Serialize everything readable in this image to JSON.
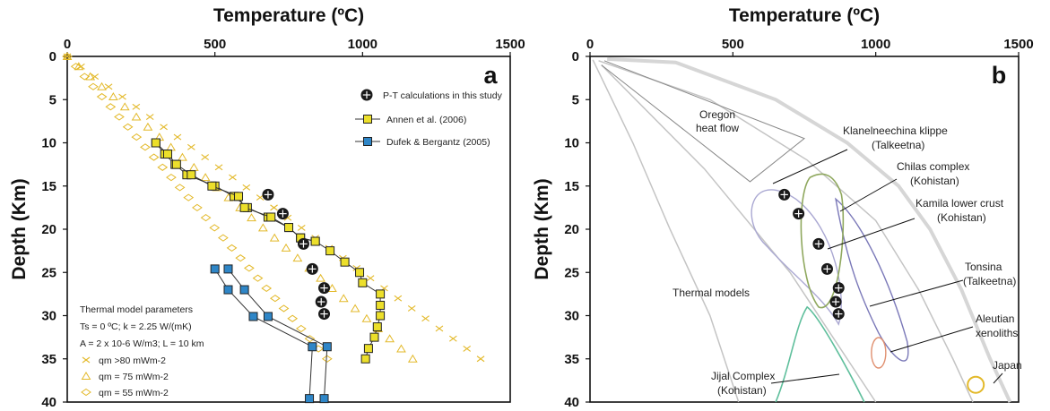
{
  "colors": {
    "gold": "#e3b92a",
    "square_yellow": "#ecdf2b",
    "square_blue": "#2f86c7",
    "orange": "#e09070",
    "green": "#8fa85e",
    "teal": "#5fbf9c",
    "purple": "#7a78b8",
    "light_purple": "#aaa8d2",
    "gray": "#c4c4c4"
  },
  "chart_data": [
    {
      "type": "scatter",
      "panel_label": "a",
      "xlabel": "Temperature (ºC)",
      "ylabel": "Depth (Km)",
      "xlim": [
        0,
        1500
      ],
      "ylim": [
        0,
        40
      ],
      "x_ticks": [
        "0",
        "500",
        "1000",
        "1500"
      ],
      "y_ticks": [
        "0",
        "5",
        "10",
        "15",
        "20",
        "25",
        "30",
        "35",
        "40"
      ],
      "legend": {
        "pt": "P-T calculations in this study",
        "annen": "Annen et al. (2006)",
        "dufek": "Dufek & Bergantz (2005)"
      },
      "params_box": {
        "title": "Thermal model parameters",
        "line1": "Ts = 0 ºC; k = 2.25 W/(mK)",
        "line2": "A = 2 x 10-6 W/m3; L = 10 km",
        "qm80": "qm >80 mWm-2",
        "qm75": "qm = 75 mWm-2",
        "qm55": "qm = 55 mWm-2"
      },
      "pt_points": [
        {
          "x": 680,
          "y": 16
        },
        {
          "x": 730,
          "y": 18.2
        },
        {
          "x": 800,
          "y": 21.7
        },
        {
          "x": 830,
          "y": 24.6
        },
        {
          "x": 870,
          "y": 26.8
        },
        {
          "x": 860,
          "y": 28.4
        },
        {
          "x": 870,
          "y": 29.8
        }
      ],
      "annen_series": [
        {
          "name": "upper",
          "points": [
            [
              300,
              10
            ],
            [
              330,
              11.3
            ],
            [
              365,
              12.5
            ],
            [
              405,
              13.7
            ],
            [
              500,
              15
            ],
            [
              565,
              16.2
            ],
            [
              610,
              17.5
            ],
            [
              680,
              18.6
            ],
            [
              750,
              19.8
            ],
            [
              790,
              21
            ],
            [
              840,
              21.4
            ],
            [
              890,
              22.5
            ],
            [
              940,
              23.8
            ],
            [
              990,
              25
            ],
            [
              1000,
              26.2
            ],
            [
              1060,
              27.5
            ],
            [
              1060,
              28.8
            ],
            [
              1060,
              30
            ],
            [
              1050,
              31.3
            ],
            [
              1040,
              32.5
            ],
            [
              1020,
              33.8
            ],
            [
              1010,
              35
            ]
          ]
        },
        {
          "name": "lower",
          "points": [
            [
              300,
              10
            ],
            [
              340,
              11.3
            ],
            [
              370,
              12.5
            ],
            [
              420,
              13.7
            ],
            [
              490,
              15
            ],
            [
              580,
              16.2
            ],
            [
              600,
              17.5
            ],
            [
              690,
              18.6
            ],
            [
              750,
              19.8
            ],
            [
              790,
              21
            ],
            [
              840,
              21.4
            ]
          ]
        }
      ],
      "dufek_series": [
        {
          "name": "A",
          "points": [
            [
              500,
              24.6
            ],
            [
              545,
              27
            ],
            [
              630,
              30.1
            ],
            [
              830,
              33.6
            ],
            [
              820,
              39.6
            ]
          ]
        },
        {
          "name": "B",
          "points": [
            [
              545,
              24.6
            ],
            [
              600,
              27
            ],
            [
              680,
              30.1
            ],
            [
              880,
              33.6
            ],
            [
              870,
              39.6
            ]
          ]
        }
      ],
      "qm_lines": [
        {
          "name": "qm >80 mWm-2",
          "marker": "x",
          "x_at_0": 0,
          "x_at_35": 1400
        },
        {
          "name": "qm = 75 mWm-2",
          "marker": "triangle",
          "x_at_0": 0,
          "x_at_35": 1170
        },
        {
          "name": "qm = 55 mWm-2",
          "marker": "diamond",
          "x_at_0": 0,
          "x_at_35": 880
        }
      ]
    },
    {
      "type": "area",
      "panel_label": "b",
      "xlabel": "Temperature (ºC)",
      "ylabel": "Depth (Km)",
      "xlim": [
        0,
        1500
      ],
      "ylim": [
        0,
        40
      ],
      "x_ticks": [
        "0",
        "500",
        "1000",
        "1500"
      ],
      "y_ticks": [
        "0",
        "5",
        "10",
        "15",
        "20",
        "25",
        "30",
        "35",
        "40"
      ],
      "labels": {
        "oregon": [
          "Oregon",
          "heat flow"
        ],
        "klanelneechina": [
          "Klanelneechina klippe",
          "(Talkeetna)"
        ],
        "chilas": [
          "Chilas complex",
          "(Kohistan)"
        ],
        "kamila": [
          "Kamila lower crust",
          "(Kohistan)"
        ],
        "tonsina": [
          "Tonsina",
          "(Talkeetna)"
        ],
        "aleutian": [
          "Aleutian",
          "xenoliths"
        ],
        "japan": "Japan",
        "thermal": "Thermal models",
        "jijal": [
          "Jijal Complex",
          "(Kohistan)"
        ]
      },
      "pt_points": [
        {
          "x": 680,
          "y": 16
        },
        {
          "x": 730,
          "y": 18.2
        },
        {
          "x": 800,
          "y": 21.7
        },
        {
          "x": 830,
          "y": 24.6
        },
        {
          "x": 870,
          "y": 26.8
        },
        {
          "x": 860,
          "y": 28.4
        },
        {
          "x": 870,
          "y": 29.8
        }
      ]
    }
  ]
}
